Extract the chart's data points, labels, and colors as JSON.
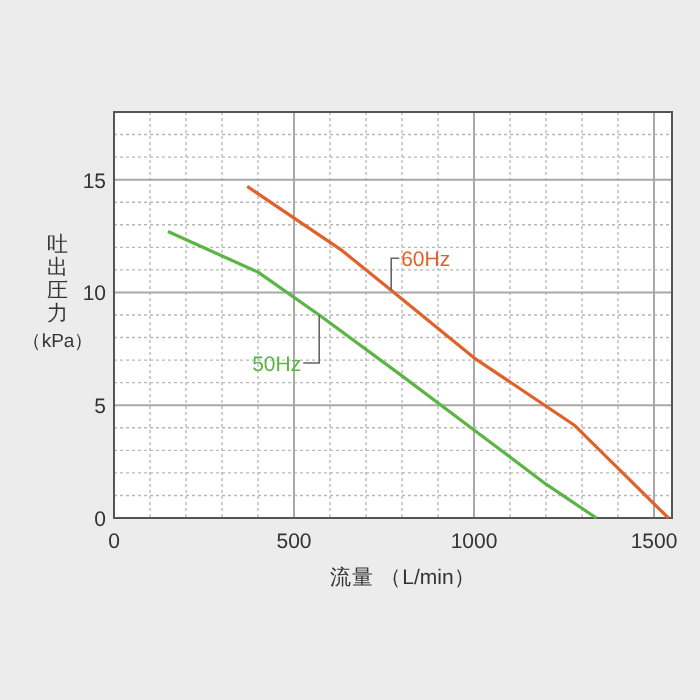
{
  "chart_data": {
    "type": "line",
    "xlabel": "流量 （L/min）",
    "ylabel": "吐出圧力（kPa）",
    "xlim": [
      0,
      1550
    ],
    "ylim": [
      0,
      18
    ],
    "xticks": [
      0,
      {
        "value": 100,
        "label": null
      },
      {
        "value": 200,
        "label": null
      },
      {
        "value": 300,
        "label": null
      },
      {
        "value": 400,
        "label": null
      },
      500,
      {
        "value": 600,
        "label": null
      },
      {
        "value": 700,
        "label": null
      },
      {
        "value": 800,
        "label": null
      },
      {
        "value": 900,
        "label": null
      },
      1000,
      {
        "value": 1100,
        "label": null
      },
      {
        "value": 1200,
        "label": null
      },
      {
        "value": 1300,
        "label": null
      },
      {
        "value": 1400,
        "label": null
      },
      1500
    ],
    "yticks": [
      0,
      {
        "value": 1,
        "label": null
      },
      {
        "value": 2,
        "label": null
      },
      {
        "value": 3,
        "label": null
      },
      {
        "value": 4,
        "label": null
      },
      5,
      {
        "value": 6,
        "label": null
      },
      {
        "value": 7,
        "label": null
      },
      {
        "value": 8,
        "label": null
      },
      {
        "value": 9,
        "label": null
      },
      10,
      {
        "value": 11,
        "label": null
      },
      {
        "value": 12,
        "label": null
      },
      {
        "value": 13,
        "label": null
      },
      {
        "value": 14,
        "label": null
      },
      15,
      {
        "value": 16,
        "label": null
      },
      {
        "value": 17,
        "label": null
      }
    ],
    "grid": true,
    "legend": false,
    "marker": "none",
    "line_style": "solid",
    "series": [
      {
        "name": "60Hz",
        "color": "#e0622a",
        "x": [
          370,
          630,
          770,
          1000,
          1280,
          1540
        ],
        "values": [
          14.7,
          11.9,
          10.1,
          7.1,
          4.1,
          0
        ]
      },
      {
        "name": "50Hz",
        "color": "#5bb544",
        "x": [
          150,
          400,
          570,
          800,
          1000,
          1200,
          1340
        ],
        "values": [
          12.7,
          10.9,
          9.0,
          6.3,
          3.9,
          1.5,
          0
        ]
      }
    ]
  }
}
